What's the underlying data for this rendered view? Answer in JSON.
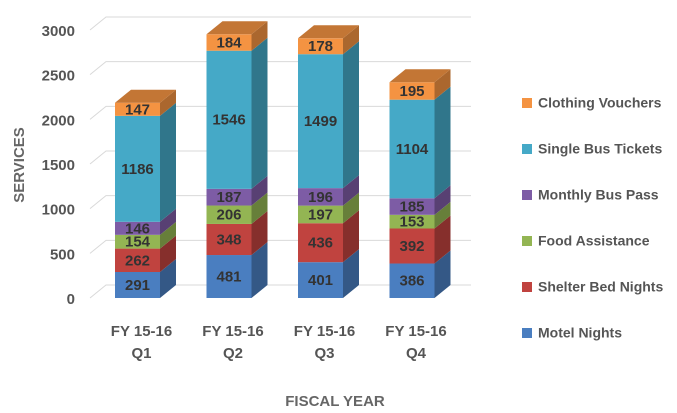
{
  "chart_data": {
    "type": "bar3d_stacked",
    "xlabel": "FISCAL YEAR",
    "ylabel": "SERVICES",
    "categories": [
      [
        "FY 15-16",
        "Q1"
      ],
      [
        "FY 15-16",
        "Q2"
      ],
      [
        "FY 15-16",
        "Q3"
      ],
      [
        "FY 15-16",
        "Q4"
      ]
    ],
    "series": [
      {
        "name": "Motel Nights",
        "color": "#4a7ec0",
        "values": [
          291,
          481,
          401,
          386
        ]
      },
      {
        "name": "Shelter Bed Nights",
        "color": "#c0433f",
        "values": [
          262,
          348,
          436,
          392
        ]
      },
      {
        "name": "Food Assistance",
        "color": "#93b553",
        "values": [
          154,
          206,
          197,
          153
        ]
      },
      {
        "name": "Monthly Bus Pass",
        "color": "#7d5ca5",
        "values": [
          146,
          187,
          196,
          185
        ]
      },
      {
        "name": "Single Bus Tickets",
        "color": "#45a9c7",
        "values": [
          1186,
          1546,
          1499,
          1104
        ]
      },
      {
        "name": "Clothing Vouchers",
        "color": "#f49342",
        "values": [
          147,
          184,
          178,
          195
        ]
      }
    ],
    "ylim": [
      0,
      3000
    ],
    "yticks": [
      0,
      500,
      1000,
      1500,
      2000,
      2500,
      3000
    ],
    "grid": true,
    "legend": "right"
  }
}
